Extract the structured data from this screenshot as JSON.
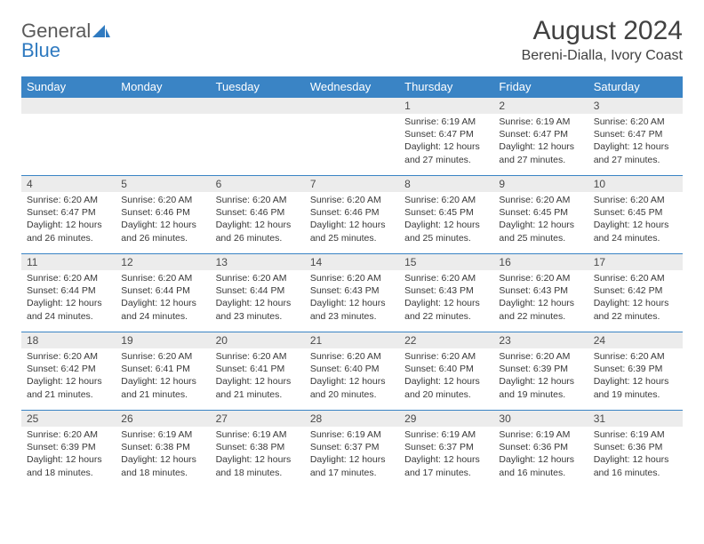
{
  "brand": {
    "part1": "General",
    "part2": "Blue"
  },
  "title": "August 2024",
  "subtitle": "Bereni-Dialla, Ivory Coast",
  "colors": {
    "header_bg": "#3a84c5",
    "header_text": "#ffffff",
    "daynum_bg": "#ececec",
    "border": "#3a84c5",
    "text": "#383838",
    "brand_grey": "#5a5a5a",
    "brand_blue": "#2f7ac0"
  },
  "layout": {
    "columns": 7,
    "rows": 5,
    "font_family": "Arial"
  },
  "dayHeaders": [
    "Sunday",
    "Monday",
    "Tuesday",
    "Wednesday",
    "Thursday",
    "Friday",
    "Saturday"
  ],
  "weeks": [
    [
      {
        "n": "",
        "lines": []
      },
      {
        "n": "",
        "lines": []
      },
      {
        "n": "",
        "lines": []
      },
      {
        "n": "",
        "lines": []
      },
      {
        "n": "1",
        "lines": [
          "Sunrise: 6:19 AM",
          "Sunset: 6:47 PM",
          "Daylight: 12 hours and 27 minutes."
        ]
      },
      {
        "n": "2",
        "lines": [
          "Sunrise: 6:19 AM",
          "Sunset: 6:47 PM",
          "Daylight: 12 hours and 27 minutes."
        ]
      },
      {
        "n": "3",
        "lines": [
          "Sunrise: 6:20 AM",
          "Sunset: 6:47 PM",
          "Daylight: 12 hours and 27 minutes."
        ]
      }
    ],
    [
      {
        "n": "4",
        "lines": [
          "Sunrise: 6:20 AM",
          "Sunset: 6:47 PM",
          "Daylight: 12 hours and 26 minutes."
        ]
      },
      {
        "n": "5",
        "lines": [
          "Sunrise: 6:20 AM",
          "Sunset: 6:46 PM",
          "Daylight: 12 hours and 26 minutes."
        ]
      },
      {
        "n": "6",
        "lines": [
          "Sunrise: 6:20 AM",
          "Sunset: 6:46 PM",
          "Daylight: 12 hours and 26 minutes."
        ]
      },
      {
        "n": "7",
        "lines": [
          "Sunrise: 6:20 AM",
          "Sunset: 6:46 PM",
          "Daylight: 12 hours and 25 minutes."
        ]
      },
      {
        "n": "8",
        "lines": [
          "Sunrise: 6:20 AM",
          "Sunset: 6:45 PM",
          "Daylight: 12 hours and 25 minutes."
        ]
      },
      {
        "n": "9",
        "lines": [
          "Sunrise: 6:20 AM",
          "Sunset: 6:45 PM",
          "Daylight: 12 hours and 25 minutes."
        ]
      },
      {
        "n": "10",
        "lines": [
          "Sunrise: 6:20 AM",
          "Sunset: 6:45 PM",
          "Daylight: 12 hours and 24 minutes."
        ]
      }
    ],
    [
      {
        "n": "11",
        "lines": [
          "Sunrise: 6:20 AM",
          "Sunset: 6:44 PM",
          "Daylight: 12 hours and 24 minutes."
        ]
      },
      {
        "n": "12",
        "lines": [
          "Sunrise: 6:20 AM",
          "Sunset: 6:44 PM",
          "Daylight: 12 hours and 24 minutes."
        ]
      },
      {
        "n": "13",
        "lines": [
          "Sunrise: 6:20 AM",
          "Sunset: 6:44 PM",
          "Daylight: 12 hours and 23 minutes."
        ]
      },
      {
        "n": "14",
        "lines": [
          "Sunrise: 6:20 AM",
          "Sunset: 6:43 PM",
          "Daylight: 12 hours and 23 minutes."
        ]
      },
      {
        "n": "15",
        "lines": [
          "Sunrise: 6:20 AM",
          "Sunset: 6:43 PM",
          "Daylight: 12 hours and 22 minutes."
        ]
      },
      {
        "n": "16",
        "lines": [
          "Sunrise: 6:20 AM",
          "Sunset: 6:43 PM",
          "Daylight: 12 hours and 22 minutes."
        ]
      },
      {
        "n": "17",
        "lines": [
          "Sunrise: 6:20 AM",
          "Sunset: 6:42 PM",
          "Daylight: 12 hours and 22 minutes."
        ]
      }
    ],
    [
      {
        "n": "18",
        "lines": [
          "Sunrise: 6:20 AM",
          "Sunset: 6:42 PM",
          "Daylight: 12 hours and 21 minutes."
        ]
      },
      {
        "n": "19",
        "lines": [
          "Sunrise: 6:20 AM",
          "Sunset: 6:41 PM",
          "Daylight: 12 hours and 21 minutes."
        ]
      },
      {
        "n": "20",
        "lines": [
          "Sunrise: 6:20 AM",
          "Sunset: 6:41 PM",
          "Daylight: 12 hours and 21 minutes."
        ]
      },
      {
        "n": "21",
        "lines": [
          "Sunrise: 6:20 AM",
          "Sunset: 6:40 PM",
          "Daylight: 12 hours and 20 minutes."
        ]
      },
      {
        "n": "22",
        "lines": [
          "Sunrise: 6:20 AM",
          "Sunset: 6:40 PM",
          "Daylight: 12 hours and 20 minutes."
        ]
      },
      {
        "n": "23",
        "lines": [
          "Sunrise: 6:20 AM",
          "Sunset: 6:39 PM",
          "Daylight: 12 hours and 19 minutes."
        ]
      },
      {
        "n": "24",
        "lines": [
          "Sunrise: 6:20 AM",
          "Sunset: 6:39 PM",
          "Daylight: 12 hours and 19 minutes."
        ]
      }
    ],
    [
      {
        "n": "25",
        "lines": [
          "Sunrise: 6:20 AM",
          "Sunset: 6:39 PM",
          "Daylight: 12 hours and 18 minutes."
        ]
      },
      {
        "n": "26",
        "lines": [
          "Sunrise: 6:19 AM",
          "Sunset: 6:38 PM",
          "Daylight: 12 hours and 18 minutes."
        ]
      },
      {
        "n": "27",
        "lines": [
          "Sunrise: 6:19 AM",
          "Sunset: 6:38 PM",
          "Daylight: 12 hours and 18 minutes."
        ]
      },
      {
        "n": "28",
        "lines": [
          "Sunrise: 6:19 AM",
          "Sunset: 6:37 PM",
          "Daylight: 12 hours and 17 minutes."
        ]
      },
      {
        "n": "29",
        "lines": [
          "Sunrise: 6:19 AM",
          "Sunset: 6:37 PM",
          "Daylight: 12 hours and 17 minutes."
        ]
      },
      {
        "n": "30",
        "lines": [
          "Sunrise: 6:19 AM",
          "Sunset: 6:36 PM",
          "Daylight: 12 hours and 16 minutes."
        ]
      },
      {
        "n": "31",
        "lines": [
          "Sunrise: 6:19 AM",
          "Sunset: 6:36 PM",
          "Daylight: 12 hours and 16 minutes."
        ]
      }
    ]
  ]
}
